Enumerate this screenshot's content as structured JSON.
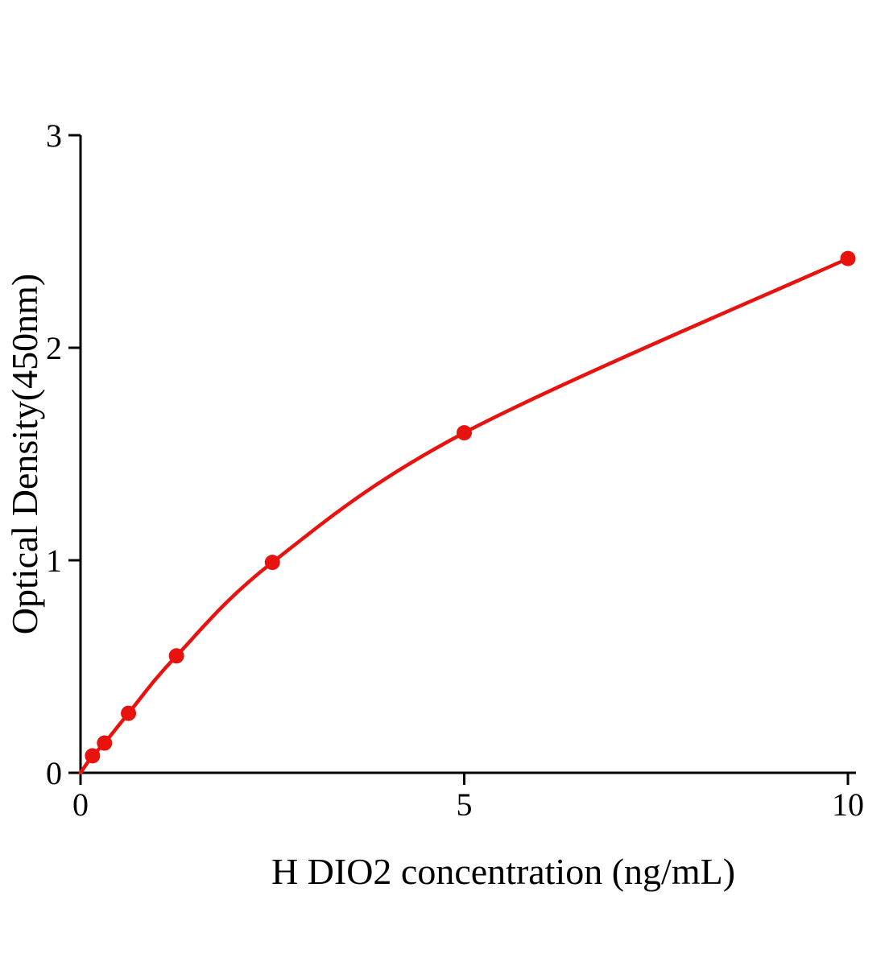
{
  "chart_data": {
    "type": "line",
    "title": "",
    "xlabel": "H DIO2 concentration (ng/mL)",
    "ylabel": "Optical Density(450nm)",
    "x": [
      0.156,
      0.3125,
      0.625,
      1.25,
      2.5,
      5,
      10
    ],
    "y": [
      0.08,
      0.14,
      0.28,
      0.55,
      0.99,
      1.6,
      2.42
    ],
    "curve_start": [
      0,
      0
    ],
    "xlim": [
      0,
      10
    ],
    "ylim": [
      0,
      3
    ],
    "x_ticks": [
      0,
      5,
      10
    ],
    "x_tick_labels": [
      "0",
      "5",
      "10"
    ],
    "y_ticks": [
      0,
      1,
      2,
      3
    ],
    "y_tick_labels": [
      "0",
      "1",
      "2",
      "3"
    ],
    "grid": false,
    "legend": null,
    "line_color": "#e8120f",
    "marker_color": "#e8120f",
    "axis_color": "#000000",
    "marker": "circle"
  }
}
